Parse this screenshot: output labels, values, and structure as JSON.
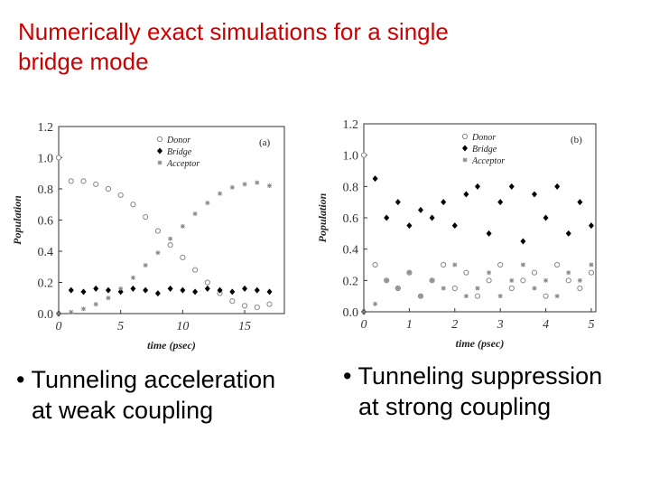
{
  "title_lines": [
    "Numerically exact simulations for a single",
    "bridge mode"
  ],
  "bullets": [
    [
      "• Tunneling acceleration",
      "at weak coupling"
    ],
    [
      "• Tunneling suppression",
      "at strong coupling"
    ]
  ],
  "chart_data": [
    {
      "type": "scatter",
      "annotation": "(a)",
      "x_label": "time (psec)",
      "y_label": "Population",
      "x": [
        0,
        1,
        2,
        3,
        4,
        5,
        6,
        7,
        8,
        9,
        10,
        11,
        12,
        13,
        14,
        15,
        16,
        17
      ],
      "series": [
        {
          "name": "Donor",
          "color": "#888888",
          "marker": "circle-open",
          "values": [
            1.0,
            0.85,
            0.85,
            0.83,
            0.8,
            0.76,
            0.7,
            0.62,
            0.53,
            0.44,
            0.36,
            0.28,
            0.2,
            0.13,
            0.08,
            0.05,
            0.04,
            0.06
          ]
        },
        {
          "name": "Bridge",
          "color": "#000000",
          "marker": "diamond",
          "values": [
            0,
            0.15,
            0.14,
            0.16,
            0.15,
            0.14,
            0.16,
            0.15,
            0.13,
            0.16,
            0.15,
            0.14,
            0.16,
            0.15,
            0.14,
            0.16,
            0.15,
            0.14
          ]
        },
        {
          "name": "Acceptor",
          "color": "#888888",
          "marker": "star",
          "values": [
            0,
            0.01,
            0.03,
            0.06,
            0.1,
            0.16,
            0.23,
            0.31,
            0.39,
            0.48,
            0.56,
            0.64,
            0.71,
            0.77,
            0.81,
            0.83,
            0.84,
            0.82
          ]
        }
      ],
      "xlim": [
        0,
        18.2
      ],
      "xticks": [
        0,
        5,
        10,
        15
      ],
      "ylim": [
        0,
        1.2
      ],
      "yticks": [
        {
          "value": 0,
          "label": "0.0"
        },
        0.2,
        0.4,
        0.6,
        0.8,
        {
          "value": 1,
          "label": "1.0"
        },
        1.2
      ]
    },
    {
      "type": "scatter",
      "annotation": "(b)",
      "x_label": "time (psec)",
      "y_label": "Population",
      "x": [
        0,
        0.25,
        0.5,
        0.75,
        1,
        1.25,
        1.5,
        1.75,
        2,
        2.25,
        2.5,
        2.75,
        3,
        3.25,
        3.5,
        3.75,
        4,
        4.25,
        4.5,
        4.75,
        5
      ],
      "series": [
        {
          "name": "Donor",
          "color": "#888888",
          "marker": "circle-open",
          "values": [
            1.0,
            0.3,
            0.2,
            0.15,
            0.25,
            0.1,
            0.2,
            0.3,
            0.15,
            0.25,
            0.1,
            0.2,
            0.3,
            0.15,
            0.2,
            0.25,
            0.1,
            0.3,
            0.2,
            0.15,
            0.25
          ]
        },
        {
          "name": "Bridge",
          "color": "#000000",
          "marker": "diamond",
          "values": [
            0,
            0.85,
            0.6,
            0.7,
            0.55,
            0.65,
            0.6,
            0.7,
            0.55,
            0.75,
            0.8,
            0.5,
            0.7,
            0.8,
            0.45,
            0.75,
            0.6,
            0.8,
            0.5,
            0.7,
            0.55
          ]
        },
        {
          "name": "Acceptor",
          "color": "#888888",
          "marker": "star",
          "values": [
            0,
            0.05,
            0.2,
            0.15,
            0.25,
            0.1,
            0.2,
            0.15,
            0.3,
            0.1,
            0.15,
            0.25,
            0.1,
            0.2,
            0.3,
            0.15,
            0.2,
            0.1,
            0.25,
            0.2,
            0.3
          ]
        }
      ],
      "xlim": [
        0,
        5.1
      ],
      "xticks": [
        0,
        1,
        2,
        3,
        4,
        5
      ],
      "ylim": [
        0,
        1.2
      ],
      "yticks": [
        {
          "value": 0,
          "label": "0.0"
        },
        0.2,
        0.4,
        0.6,
        0.8,
        {
          "value": 1,
          "label": "1.0"
        },
        1.2
      ]
    }
  ]
}
